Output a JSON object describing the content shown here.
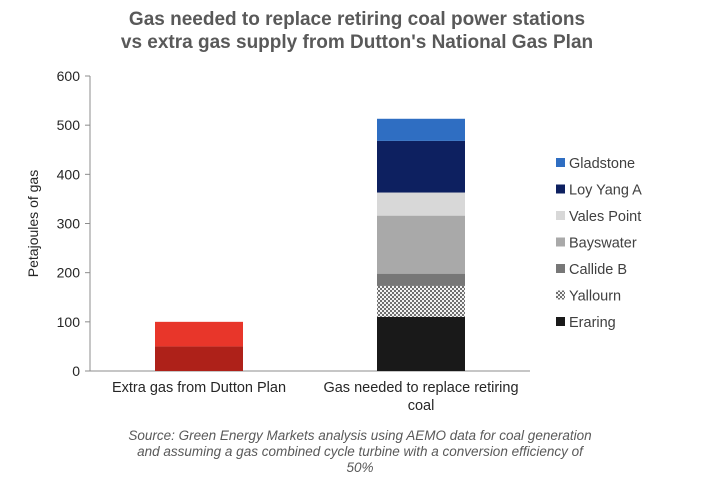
{
  "title": [
    "Gas needed to replace retiring coal power stations",
    "vs extra gas supply from Dutton's National Gas Plan"
  ],
  "source": [
    "Source: Green Energy Markets analysis using AEMO data for coal generation",
    "and assuming a gas combined cycle turbine with a conversion efficiency of",
    "50%"
  ],
  "chart_data": {
    "type": "bar",
    "stacked": true,
    "title": "Gas needed to replace retiring coal power stations vs extra gas supply from Dutton's National Gas Plan",
    "xlabel": "",
    "ylabel": "Petajoules of gas",
    "ylim": [
      0,
      600
    ],
    "yticks": [
      0,
      100,
      200,
      300,
      400,
      500,
      600
    ],
    "categories": [
      [
        "Extra gas from Dutton Plan"
      ],
      [
        "Gas needed to replace retiring",
        "coal"
      ]
    ],
    "series": [
      {
        "name": "",
        "color": "#ae2119",
        "values": [
          50,
          0
        ]
      },
      {
        "name": "",
        "color": "#e8362a",
        "values": [
          50,
          0
        ]
      },
      {
        "name": "Eraring",
        "color": "#191919",
        "values": [
          0,
          110
        ]
      },
      {
        "name": "Yallourn",
        "color": "#9a9a9a",
        "pattern": "checker",
        "values": [
          0,
          63
        ]
      },
      {
        "name": "Callide B",
        "color": "#777777",
        "values": [
          0,
          25
        ]
      },
      {
        "name": "Bayswater",
        "color": "#a9a9a9",
        "values": [
          0,
          118
        ]
      },
      {
        "name": "Vales Point",
        "color": "#d8d8d8",
        "values": [
          0,
          47
        ]
      },
      {
        "name": "Loy Yang A",
        "color": "#0d2060",
        "values": [
          0,
          105
        ]
      },
      {
        "name": "Gladstone",
        "color": "#2f6ec2",
        "values": [
          0,
          45
        ]
      }
    ],
    "legend": {
      "position": "right",
      "order": [
        "Gladstone",
        "Loy Yang A",
        "Vales Point",
        "Bayswater",
        "Callide B",
        "Yallourn",
        "Eraring"
      ]
    },
    "grid": false
  }
}
